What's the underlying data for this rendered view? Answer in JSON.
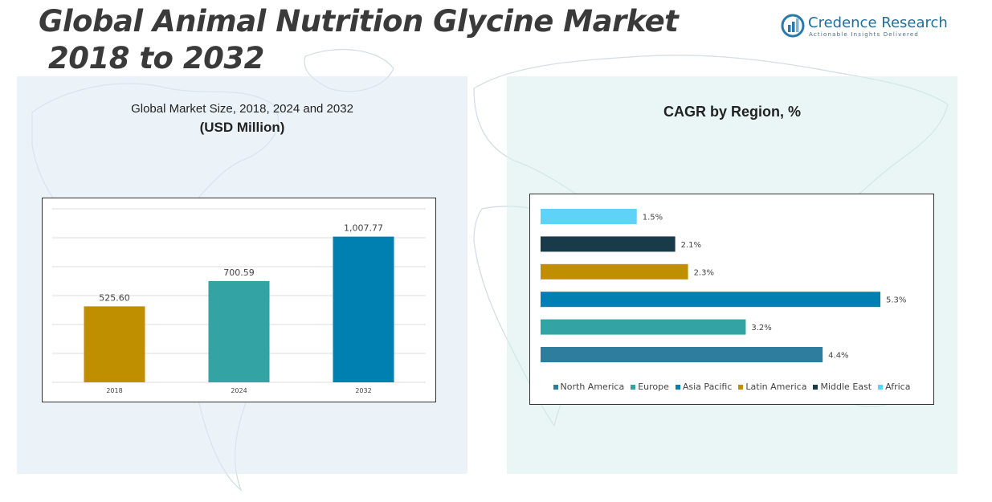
{
  "header": {
    "title_line1": "Global Animal Nutrition Glycine Market",
    "title_line2": "2018 to 2032"
  },
  "logo": {
    "name": "Credence Research",
    "tagline": "Actionable Insights Delivered"
  },
  "colors": {
    "gold": "#BF8F00",
    "teal": "#33A3A3",
    "blue": "#0080B0",
    "steel": "#2E7C9E",
    "navy": "#193A48",
    "sky": "#5CD3F7"
  },
  "chart_data": [
    {
      "type": "bar",
      "title": "Global Market Size, 2018, 2024 and 2032",
      "subtitle": "(USD Million)",
      "categories": [
        "2018",
        "2024",
        "2032"
      ],
      "values": [
        525.6,
        700.59,
        1007.77
      ],
      "value_labels": [
        "525.60",
        "700.59",
        "1,007.77"
      ],
      "bar_colors": [
        "#BF8F00",
        "#33A3A3",
        "#0080B0"
      ],
      "ylim": [
        0,
        1200
      ],
      "grid": true,
      "xlabel": "",
      "ylabel": ""
    },
    {
      "type": "bar",
      "orientation": "horizontal",
      "title": "CAGR by Region, %",
      "categories": [
        "North America",
        "Europe",
        "Asia Pacific",
        "Latin America",
        "Middle East",
        "Africa"
      ],
      "values": [
        4.4,
        3.2,
        5.3,
        2.3,
        2.1,
        1.5
      ],
      "value_labels": [
        "4.4%",
        "3.2%",
        "5.3%",
        "2.3%",
        "2.1%",
        "1.5%"
      ],
      "colors": [
        "#2E7C9E",
        "#33A3A3",
        "#0080B0",
        "#BF8F00",
        "#193A48",
        "#5CD3F7"
      ],
      "xlim": [
        0,
        5.3
      ],
      "grid": false,
      "legend": "bottom"
    }
  ]
}
